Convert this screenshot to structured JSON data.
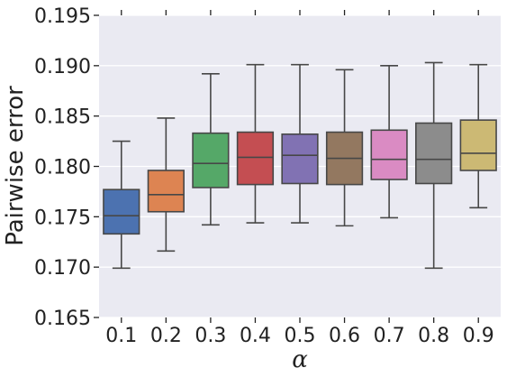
{
  "chart_data": {
    "type": "box",
    "xlabel": "α",
    "ylabel": "Pairwise error",
    "ylim": [
      0.165,
      0.195
    ],
    "yticks": [
      "0.165",
      "0.170",
      "0.175",
      "0.180",
      "0.185",
      "0.190",
      "0.195"
    ],
    "categories": [
      "0.1",
      "0.2",
      "0.3",
      "0.4",
      "0.5",
      "0.6",
      "0.7",
      "0.8",
      "0.9"
    ],
    "grid": true,
    "boxes": [
      {
        "category": "0.1",
        "whisker_low": 0.1699,
        "q1": 0.1733,
        "median": 0.1751,
        "q3": 0.1777,
        "whisker_high": 0.1825,
        "color": "#4c72b0"
      },
      {
        "category": "0.2",
        "whisker_low": 0.1716,
        "q1": 0.1755,
        "median": 0.1772,
        "q3": 0.1796,
        "whisker_high": 0.1848,
        "color": "#dd8452"
      },
      {
        "category": "0.3",
        "whisker_low": 0.1742,
        "q1": 0.1779,
        "median": 0.1803,
        "q3": 0.1833,
        "whisker_high": 0.1892,
        "color": "#55a868"
      },
      {
        "category": "0.4",
        "whisker_low": 0.1744,
        "q1": 0.1782,
        "median": 0.1809,
        "q3": 0.1834,
        "whisker_high": 0.1901,
        "color": "#c44e52"
      },
      {
        "category": "0.5",
        "whisker_low": 0.1744,
        "q1": 0.1783,
        "median": 0.1811,
        "q3": 0.1832,
        "whisker_high": 0.1901,
        "color": "#8172b3"
      },
      {
        "category": "0.6",
        "whisker_low": 0.1741,
        "q1": 0.1782,
        "median": 0.1808,
        "q3": 0.1834,
        "whisker_high": 0.1896,
        "color": "#937860"
      },
      {
        "category": "0.7",
        "whisker_low": 0.1749,
        "q1": 0.1787,
        "median": 0.1807,
        "q3": 0.1836,
        "whisker_high": 0.19,
        "color": "#da8bc3"
      },
      {
        "category": "0.8",
        "whisker_low": 0.1699,
        "q1": 0.1783,
        "median": 0.1807,
        "q3": 0.1843,
        "whisker_high": 0.1903,
        "color": "#8c8c8c"
      },
      {
        "category": "0.9",
        "whisker_low": 0.1759,
        "q1": 0.1796,
        "median": 0.1813,
        "q3": 0.1846,
        "whisker_high": 0.1901,
        "color": "#ccb974"
      }
    ]
  }
}
